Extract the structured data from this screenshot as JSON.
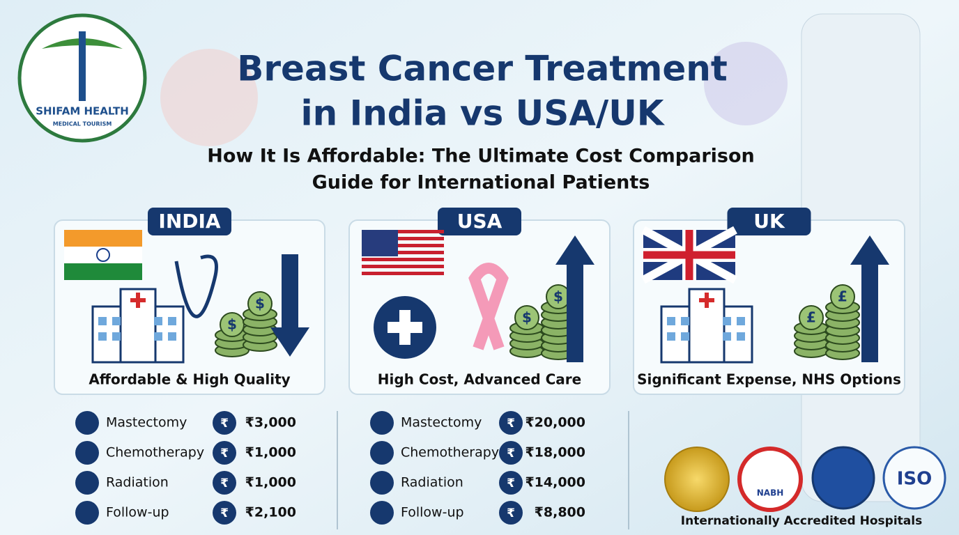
{
  "logo": {
    "name": "SHIFAM HEALTH",
    "tagline": "MEDICAL TOURISM"
  },
  "header": {
    "title_lines": [
      "Breast Cancer Treatment",
      "in India vs USA/UK"
    ],
    "subtitle_lines": [
      "How It Is Affordable: The Ultimate Cost Comparison",
      "Guide for International Patients"
    ]
  },
  "symbols": {
    "dollar": "$",
    "pound": "£",
    "rupee": "₹"
  },
  "cards": [
    {
      "label": "INDIA",
      "caption": "Affordable & High Quality"
    },
    {
      "label": "USA",
      "caption": "High Cost, Advanced Care"
    },
    {
      "label": "UK",
      "caption": "Significant Expense, NHS Options"
    }
  ],
  "cost_lists": [
    {
      "rows": [
        [
          "Mastectomy",
          "₹3,000"
        ],
        [
          "Chemotherapy",
          "₹1,000"
        ],
        [
          "Radiation",
          "₹1,000"
        ],
        [
          "Follow-up",
          "₹2,100"
        ]
      ]
    },
    {
      "rows": [
        [
          "Mastectomy",
          "₹20,000"
        ],
        [
          "Chemotherapy",
          "₹18,000"
        ],
        [
          "Radiation",
          "₹14,000"
        ],
        [
          "Follow-up",
          "₹8,800"
        ]
      ]
    }
  ],
  "badges": [
    "NABH",
    "ISO"
  ],
  "footer": "Internationally Accredited Hospitals"
}
